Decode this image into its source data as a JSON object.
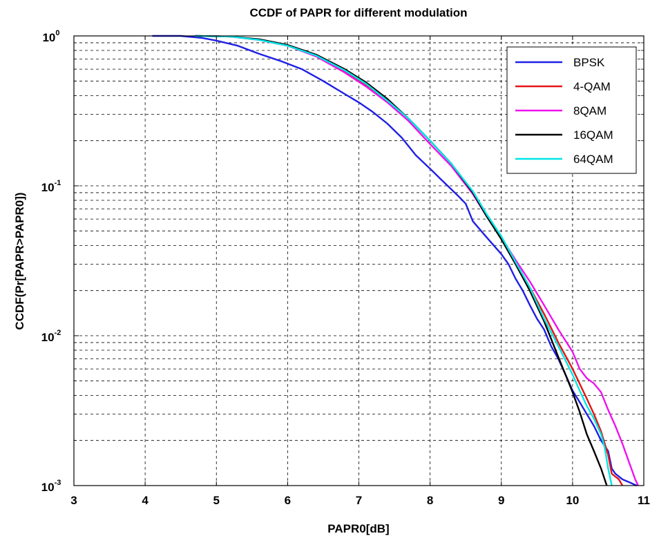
{
  "chart_data": {
    "type": "line",
    "title": "CCDF of PAPR for different modulation",
    "xlabel": "PAPR0[dB]",
    "ylabel": "CCDF(Pr[PAPR>PAPR0])",
    "xlim": [
      3,
      11
    ],
    "ylim": [
      0.001,
      1
    ],
    "yscale": "log",
    "grid": true,
    "legend_position": "top-right",
    "x_ticks": [
      {
        "value": 3,
        "label": "3"
      },
      {
        "value": 4,
        "label": "4"
      },
      {
        "value": 5,
        "label": "5"
      },
      {
        "value": 6,
        "label": "6"
      },
      {
        "value": 7,
        "label": "7"
      },
      {
        "value": 8,
        "label": "8"
      },
      {
        "value": 9,
        "label": "9"
      },
      {
        "value": 10,
        "label": "10"
      },
      {
        "value": 11,
        "label": "11"
      }
    ],
    "y_ticks": [
      {
        "value": 1,
        "base": "10",
        "exp": "0"
      },
      {
        "value": 0.1,
        "base": "10",
        "exp": "-1"
      },
      {
        "value": 0.01,
        "base": "10",
        "exp": "-2"
      },
      {
        "value": 0.001,
        "base": "10",
        "exp": "-3"
      }
    ],
    "series": [
      {
        "name": "BPSK",
        "color": "#1f1fe6",
        "points": [
          [
            4.1,
            1.0
          ],
          [
            4.5,
            1.0
          ],
          [
            4.8,
            0.97
          ],
          [
            5.0,
            0.93
          ],
          [
            5.3,
            0.86
          ],
          [
            5.6,
            0.76
          ],
          [
            5.9,
            0.68
          ],
          [
            6.2,
            0.6
          ],
          [
            6.5,
            0.5
          ],
          [
            6.8,
            0.41
          ],
          [
            7.0,
            0.36
          ],
          [
            7.2,
            0.31
          ],
          [
            7.4,
            0.26
          ],
          [
            7.6,
            0.21
          ],
          [
            7.8,
            0.16
          ],
          [
            8.0,
            0.13
          ],
          [
            8.2,
            0.105
          ],
          [
            8.4,
            0.085
          ],
          [
            8.5,
            0.076
          ],
          [
            8.6,
            0.058
          ],
          [
            8.8,
            0.045
          ],
          [
            9.0,
            0.035
          ],
          [
            9.1,
            0.03
          ],
          [
            9.2,
            0.024
          ],
          [
            9.3,
            0.02
          ],
          [
            9.4,
            0.016
          ],
          [
            9.5,
            0.013
          ],
          [
            9.6,
            0.011
          ],
          [
            9.7,
            0.0085
          ],
          [
            9.8,
            0.007
          ],
          [
            9.9,
            0.0055
          ],
          [
            10.0,
            0.0043
          ],
          [
            10.1,
            0.0036
          ],
          [
            10.2,
            0.003
          ],
          [
            10.3,
            0.0025
          ],
          [
            10.4,
            0.002
          ],
          [
            10.5,
            0.0017
          ],
          [
            10.55,
            0.0013
          ],
          [
            10.6,
            0.0012
          ],
          [
            10.7,
            0.0011
          ],
          [
            10.8,
            0.00105
          ],
          [
            10.9,
            0.001
          ]
        ]
      },
      {
        "name": "4-QAM",
        "color": "#e61414",
        "points": [
          [
            4.7,
            1.0
          ],
          [
            5.2,
            0.99
          ],
          [
            5.6,
            0.94
          ],
          [
            6.0,
            0.86
          ],
          [
            6.4,
            0.74
          ],
          [
            6.8,
            0.58
          ],
          [
            7.1,
            0.47
          ],
          [
            7.4,
            0.37
          ],
          [
            7.7,
            0.28
          ],
          [
            8.0,
            0.2
          ],
          [
            8.3,
            0.14
          ],
          [
            8.6,
            0.09
          ],
          [
            8.8,
            0.063
          ],
          [
            9.0,
            0.045
          ],
          [
            9.2,
            0.031
          ],
          [
            9.4,
            0.021
          ],
          [
            9.6,
            0.014
          ],
          [
            9.8,
            0.009
          ],
          [
            10.0,
            0.006
          ],
          [
            10.2,
            0.0038
          ],
          [
            10.3,
            0.003
          ],
          [
            10.4,
            0.0023
          ],
          [
            10.5,
            0.0016
          ],
          [
            10.55,
            0.0012
          ],
          [
            10.65,
            0.0011
          ],
          [
            10.7,
            0.001
          ]
        ]
      },
      {
        "name": "8QAM",
        "color": "#ee12ee",
        "points": [
          [
            4.7,
            1.0
          ],
          [
            5.2,
            0.99
          ],
          [
            5.6,
            0.94
          ],
          [
            6.0,
            0.86
          ],
          [
            6.4,
            0.73
          ],
          [
            6.8,
            0.57
          ],
          [
            7.1,
            0.46
          ],
          [
            7.4,
            0.36
          ],
          [
            7.7,
            0.27
          ],
          [
            8.0,
            0.19
          ],
          [
            8.3,
            0.135
          ],
          [
            8.6,
            0.088
          ],
          [
            8.8,
            0.062
          ],
          [
            9.0,
            0.045
          ],
          [
            9.2,
            0.032
          ],
          [
            9.4,
            0.023
          ],
          [
            9.6,
            0.016
          ],
          [
            9.8,
            0.011
          ],
          [
            10.0,
            0.0078
          ],
          [
            10.1,
            0.006
          ],
          [
            10.2,
            0.0052
          ],
          [
            10.3,
            0.0048
          ],
          [
            10.4,
            0.0042
          ],
          [
            10.5,
            0.0032
          ],
          [
            10.6,
            0.0025
          ],
          [
            10.7,
            0.0019
          ],
          [
            10.8,
            0.0014
          ],
          [
            10.88,
            0.0011
          ],
          [
            10.92,
            0.001
          ]
        ]
      },
      {
        "name": "16QAM",
        "color": "#000000",
        "points": [
          [
            4.7,
            1.0
          ],
          [
            5.2,
            0.99
          ],
          [
            5.6,
            0.95
          ],
          [
            6.0,
            0.87
          ],
          [
            6.4,
            0.75
          ],
          [
            6.8,
            0.6
          ],
          [
            7.1,
            0.49
          ],
          [
            7.4,
            0.38
          ],
          [
            7.7,
            0.28
          ],
          [
            8.0,
            0.2
          ],
          [
            8.3,
            0.14
          ],
          [
            8.6,
            0.09
          ],
          [
            8.8,
            0.062
          ],
          [
            9.0,
            0.044
          ],
          [
            9.2,
            0.03
          ],
          [
            9.4,
            0.02
          ],
          [
            9.6,
            0.0125
          ],
          [
            9.7,
            0.0095
          ],
          [
            9.8,
            0.0072
          ],
          [
            9.9,
            0.0055
          ],
          [
            10.0,
            0.0042
          ],
          [
            10.1,
            0.0031
          ],
          [
            10.2,
            0.0022
          ],
          [
            10.3,
            0.0017
          ],
          [
            10.4,
            0.0013
          ],
          [
            10.48,
            0.001
          ]
        ]
      },
      {
        "name": "64QAM",
        "color": "#00e6e6",
        "points": [
          [
            4.7,
            1.0
          ],
          [
            5.2,
            0.99
          ],
          [
            5.6,
            0.94
          ],
          [
            6.0,
            0.86
          ],
          [
            6.4,
            0.74
          ],
          [
            6.8,
            0.59
          ],
          [
            7.1,
            0.48
          ],
          [
            7.4,
            0.37
          ],
          [
            7.7,
            0.28
          ],
          [
            8.0,
            0.2
          ],
          [
            8.3,
            0.14
          ],
          [
            8.6,
            0.092
          ],
          [
            8.8,
            0.064
          ],
          [
            9.0,
            0.046
          ],
          [
            9.2,
            0.031
          ],
          [
            9.4,
            0.021
          ],
          [
            9.6,
            0.013
          ],
          [
            9.8,
            0.0085
          ],
          [
            10.0,
            0.0055
          ],
          [
            10.1,
            0.0043
          ],
          [
            10.2,
            0.0034
          ],
          [
            10.3,
            0.0028
          ],
          [
            10.4,
            0.0022
          ],
          [
            10.45,
            0.0018
          ],
          [
            10.5,
            0.0013
          ],
          [
            10.55,
            0.001
          ]
        ]
      }
    ]
  }
}
